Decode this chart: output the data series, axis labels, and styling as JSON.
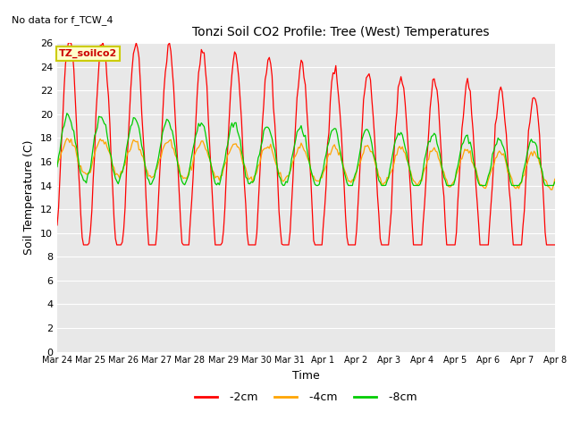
{
  "title": "Tonzi Soil CO2 Profile: Tree (West) Temperatures",
  "no_data_label": "No data for f_TCW_4",
  "xlabel": "Time",
  "ylabel": "Soil Temperature (C)",
  "legend_label": "TZ_soilco2",
  "ylim": [
    0,
    26
  ],
  "yticks": [
    0,
    2,
    4,
    6,
    8,
    10,
    12,
    14,
    16,
    18,
    20,
    22,
    24,
    26
  ],
  "fig_bg": "#ffffff",
  "plot_bg": "#e8e8e8",
  "line_colors": {
    "-2cm": "#ff0000",
    "-4cm": "#ffa500",
    "-8cm": "#00cc00"
  },
  "tick_labels": [
    "Mar 24",
    "Mar 25",
    "Mar 26",
    "Mar 27",
    "Mar 28",
    "Mar 29",
    "Mar 30",
    "Mar 31",
    "Apr 1",
    "Apr 2",
    "Apr 3",
    "Apr 4",
    "Apr 5",
    "Apr 6",
    "Apr 7",
    "Apr 8"
  ]
}
